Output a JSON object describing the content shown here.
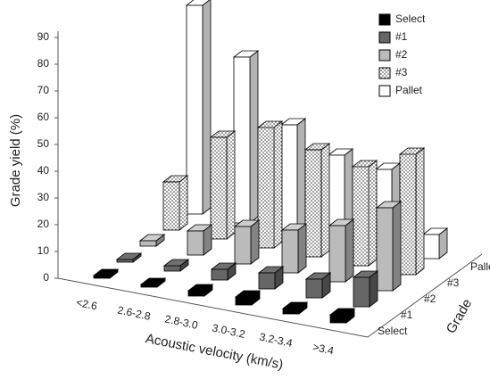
{
  "chart_data": {
    "type": "bar3d",
    "y_label": "Grade yield (%)",
    "x_label": "Acoustic velocity (km/s)",
    "z_label": "Grade",
    "categories": [
      "<2.6",
      "2.6-2.8",
      "2.8-3.0",
      "3.0-3.2",
      "3.2-3.4",
      ">3.4"
    ],
    "series": [
      {
        "name": "Select",
        "color": "#000000",
        "values": [
          1,
          1,
          2,
          3,
          2,
          3
        ]
      },
      {
        "name": "#1",
        "color": "#666666",
        "values": [
          1,
          2,
          4,
          6,
          7,
          11
        ]
      },
      {
        "name": "#2",
        "color": "#bbbbbb",
        "values": [
          2,
          9,
          14,
          16,
          21,
          31
        ]
      },
      {
        "name": "#3",
        "color": "#ffffff",
        "pattern": "dots",
        "values": [
          18,
          38,
          45,
          40,
          37,
          45
        ]
      },
      {
        "name": "Pallet",
        "color": "#ffffff",
        "values": [
          78,
          62,
          40,
          32,
          30,
          9
        ]
      }
    ],
    "ylim": [
      0,
      90
    ],
    "yticks": [
      0,
      10,
      20,
      30,
      40,
      50,
      60,
      70,
      80,
      90
    ]
  }
}
